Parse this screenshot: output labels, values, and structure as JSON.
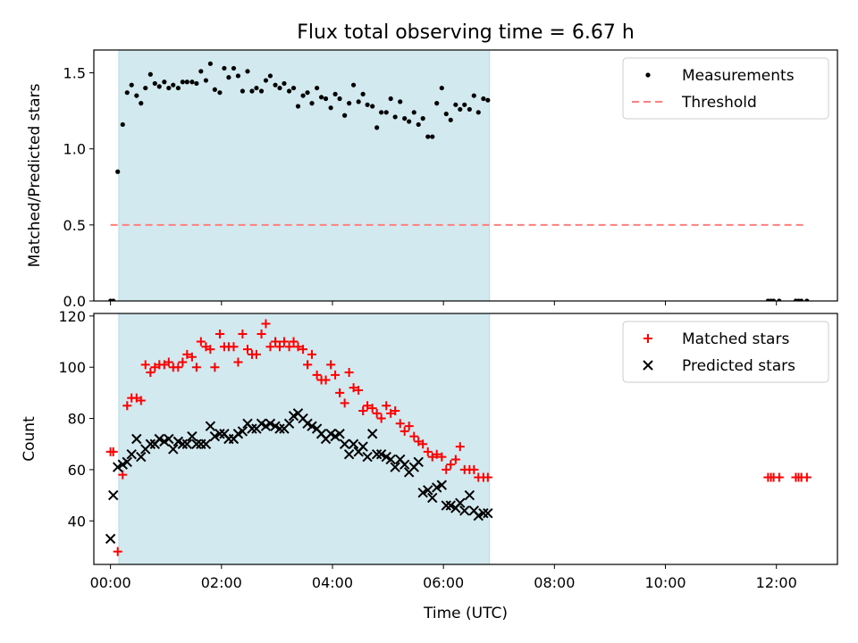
{
  "title": "Flux total observing time = 6.67 h",
  "colors": {
    "measurement": "#000000",
    "threshold": "#ff7f7f",
    "matched": "#ff0000",
    "predicted": "#000000",
    "span": "#d2e9f0"
  },
  "chart_data": [
    {
      "type": "scatter",
      "ylabel": "Matched/Predicted stars",
      "xlabel": "",
      "xlim": [
        -0.3,
        13.1
      ],
      "ylim": [
        0.0,
        1.65
      ],
      "yticks": [
        0.0,
        0.5,
        1.0,
        1.5
      ],
      "ytick_labels": [
        "0.0",
        "0.5",
        "1.0",
        "1.5"
      ],
      "shaded_span": [
        0.15,
        6.83
      ],
      "legend": {
        "position": "top-right",
        "entries": [
          "Measurements",
          "Threshold"
        ]
      },
      "series": [
        {
          "name": "Measurements",
          "marker": "dot",
          "x": [
            0.0,
            0.05,
            0.13,
            0.22,
            0.3,
            0.38,
            0.47,
            0.55,
            0.63,
            0.72,
            0.8,
            0.88,
            0.97,
            1.05,
            1.13,
            1.22,
            1.3,
            1.38,
            1.47,
            1.55,
            1.63,
            1.72,
            1.8,
            1.88,
            1.97,
            2.05,
            2.13,
            2.22,
            2.3,
            2.38,
            2.47,
            2.55,
            2.63,
            2.72,
            2.8,
            2.88,
            2.97,
            3.05,
            3.13,
            3.22,
            3.3,
            3.38,
            3.47,
            3.55,
            3.63,
            3.72,
            3.8,
            3.88,
            3.97,
            4.05,
            4.13,
            4.22,
            4.3,
            4.38,
            4.47,
            4.55,
            4.63,
            4.72,
            4.8,
            4.88,
            4.97,
            5.05,
            5.13,
            5.22,
            5.3,
            5.38,
            5.47,
            5.55,
            5.63,
            5.72,
            5.8,
            5.88,
            5.97,
            6.05,
            6.13,
            6.22,
            6.3,
            6.38,
            6.47,
            6.55,
            6.63,
            6.72,
            6.8,
            11.85,
            11.9,
            11.95,
            12.05,
            12.35,
            12.4,
            12.45,
            12.55
          ],
          "y": [
            0.0,
            0.0,
            0.85,
            1.16,
            1.37,
            1.42,
            1.35,
            1.3,
            1.4,
            1.49,
            1.43,
            1.41,
            1.44,
            1.4,
            1.42,
            1.4,
            1.44,
            1.44,
            1.44,
            1.43,
            1.51,
            1.45,
            1.56,
            1.39,
            1.37,
            1.53,
            1.47,
            1.53,
            1.48,
            1.38,
            1.51,
            1.38,
            1.4,
            1.38,
            1.45,
            1.48,
            1.42,
            1.4,
            1.43,
            1.38,
            1.4,
            1.28,
            1.35,
            1.37,
            1.3,
            1.4,
            1.34,
            1.33,
            1.27,
            1.36,
            1.33,
            1.22,
            1.3,
            1.42,
            1.31,
            1.36,
            1.29,
            1.28,
            1.14,
            1.24,
            1.24,
            1.33,
            1.21,
            1.31,
            1.2,
            1.18,
            1.24,
            1.16,
            1.2,
            1.08,
            1.08,
            1.3,
            1.4,
            1.23,
            1.19,
            1.29,
            1.26,
            1.29,
            1.26,
            1.35,
            1.24,
            1.33,
            1.32,
            0.0,
            0.0,
            0.0,
            0.0,
            0.0,
            0.0,
            0.0,
            0.0
          ]
        },
        {
          "name": "Threshold",
          "marker": "dashed-line",
          "x": [
            0.0,
            12.5
          ],
          "y": [
            0.5,
            0.5
          ]
        }
      ]
    },
    {
      "type": "scatter",
      "ylabel": "Count",
      "xlabel": "Time (UTC)",
      "xlim": [
        -0.3,
        13.1
      ],
      "ylim": [
        23,
        121
      ],
      "yticks": [
        40,
        60,
        80,
        100,
        120
      ],
      "ytick_labels": [
        "40",
        "60",
        "80",
        "100",
        "120"
      ],
      "xticks": [
        0,
        2,
        4,
        6,
        8,
        10,
        12
      ],
      "xtick_labels": [
        "00:00",
        "02:00",
        "04:00",
        "06:00",
        "08:00",
        "10:00",
        "12:00"
      ],
      "shaded_span": [
        0.15,
        6.83
      ],
      "legend": {
        "position": "top-right",
        "entries": [
          "Matched stars",
          "Predicted stars"
        ]
      },
      "series": [
        {
          "name": "Matched stars",
          "marker": "plus",
          "x": [
            0.0,
            0.05,
            0.13,
            0.22,
            0.3,
            0.38,
            0.47,
            0.55,
            0.63,
            0.72,
            0.8,
            0.88,
            0.97,
            1.05,
            1.13,
            1.22,
            1.3,
            1.38,
            1.47,
            1.55,
            1.63,
            1.72,
            1.8,
            1.88,
            1.97,
            2.05,
            2.13,
            2.22,
            2.3,
            2.38,
            2.47,
            2.55,
            2.63,
            2.72,
            2.8,
            2.88,
            2.97,
            3.05,
            3.13,
            3.22,
            3.3,
            3.38,
            3.47,
            3.55,
            3.63,
            3.72,
            3.8,
            3.88,
            3.97,
            4.05,
            4.13,
            4.22,
            4.3,
            4.38,
            4.47,
            4.55,
            4.63,
            4.72,
            4.8,
            4.88,
            4.97,
            5.05,
            5.13,
            5.22,
            5.3,
            5.38,
            5.47,
            5.55,
            5.63,
            5.72,
            5.8,
            5.88,
            5.97,
            6.05,
            6.13,
            6.22,
            6.3,
            6.38,
            6.47,
            6.55,
            6.63,
            6.72,
            6.8,
            11.85,
            11.9,
            11.95,
            12.05,
            12.35,
            12.4,
            12.45,
            12.55
          ],
          "y": [
            67,
            67,
            28,
            58,
            85,
            88,
            88,
            87,
            101,
            98,
            100,
            101,
            101,
            102,
            100,
            100,
            102,
            105,
            104,
            100,
            110,
            108,
            107,
            100,
            113,
            108,
            108,
            108,
            102,
            113,
            107,
            105,
            105,
            113,
            117,
            108,
            110,
            108,
            110,
            108,
            110,
            108,
            107,
            101,
            105,
            97,
            95,
            95,
            101,
            97,
            90,
            86,
            98,
            92,
            91,
            83,
            85,
            84,
            82,
            80,
            85,
            82,
            83,
            78,
            75,
            77,
            73,
            71,
            70,
            67,
            65,
            66,
            65,
            60,
            62,
            64,
            69,
            60,
            60,
            60,
            57,
            57,
            57,
            57,
            57,
            57,
            57,
            57,
            57,
            57,
            57
          ]
        },
        {
          "name": "Predicted stars",
          "marker": "x",
          "x": [
            0.0,
            0.05,
            0.13,
            0.22,
            0.3,
            0.38,
            0.47,
            0.55,
            0.63,
            0.72,
            0.8,
            0.88,
            0.97,
            1.05,
            1.13,
            1.22,
            1.3,
            1.38,
            1.47,
            1.55,
            1.63,
            1.72,
            1.8,
            1.88,
            1.97,
            2.05,
            2.13,
            2.22,
            2.3,
            2.38,
            2.47,
            2.55,
            2.63,
            2.72,
            2.8,
            2.88,
            2.97,
            3.05,
            3.13,
            3.22,
            3.3,
            3.38,
            3.47,
            3.55,
            3.63,
            3.72,
            3.8,
            3.88,
            3.97,
            4.05,
            4.13,
            4.22,
            4.3,
            4.38,
            4.47,
            4.55,
            4.63,
            4.72,
            4.8,
            4.88,
            4.97,
            5.05,
            5.13,
            5.22,
            5.3,
            5.38,
            5.47,
            5.55,
            5.63,
            5.72,
            5.8,
            5.88,
            5.97,
            6.05,
            6.13,
            6.22,
            6.3,
            6.38,
            6.47,
            6.55,
            6.63,
            6.72,
            6.8
          ],
          "y": [
            33,
            50,
            61,
            62,
            63,
            66,
            72,
            65,
            68,
            70,
            70,
            72,
            71,
            72,
            68,
            71,
            70,
            70,
            73,
            70,
            70,
            70,
            77,
            73,
            74,
            74,
            72,
            72,
            74,
            75,
            78,
            76,
            76,
            78,
            77,
            78,
            77,
            76,
            76,
            78,
            81,
            82,
            80,
            78,
            77,
            76,
            74,
            72,
            74,
            73,
            74,
            70,
            66,
            70,
            67,
            69,
            65,
            74,
            66,
            66,
            65,
            64,
            61,
            64,
            62,
            59,
            61,
            63,
            51,
            52,
            49,
            53,
            54,
            46,
            46,
            45,
            47,
            44,
            50,
            44,
            42,
            43,
            43
          ]
        }
      ]
    }
  ]
}
